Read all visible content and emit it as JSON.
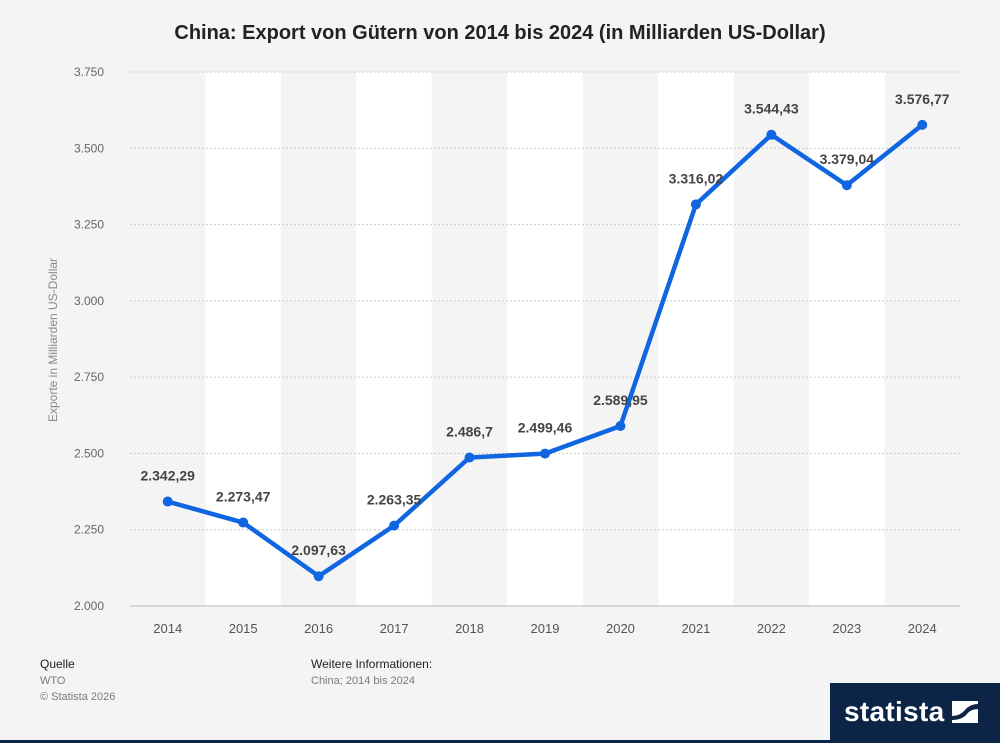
{
  "title": "China: Export von Gütern von 2014 bis 2024 (in Milliarden US-Dollar)",
  "chart_data": {
    "type": "line",
    "title": "China: Export von Gütern von 2014 bis 2024 (in Milliarden US-Dollar)",
    "ylabel": "Exporte in Milliarden US-Dollar",
    "xlabel": "",
    "categories": [
      "2014",
      "2015",
      "2016",
      "2017",
      "2018",
      "2019",
      "2020",
      "2021",
      "2022",
      "2023",
      "2024"
    ],
    "values": [
      2342.29,
      2273.47,
      2097.63,
      2263.35,
      2486.7,
      2499.46,
      2589.95,
      3316.02,
      3544.43,
      3379.04,
      3576.77
    ],
    "value_labels": [
      "2.342,29",
      "2.273,47",
      "2.097,63",
      "2.263,35",
      "2.486,7",
      "2.499,46",
      "2.589,95",
      "3.316,02",
      "3.544,43",
      "3.379,04",
      "3.576,77"
    ],
    "ylim": [
      2000,
      3750
    ],
    "yticks": [
      2000,
      2250,
      2500,
      2750,
      3000,
      3250,
      3500,
      3750
    ],
    "ytick_labels": [
      "2.000",
      "2.250",
      "2.500",
      "2.750",
      "3.000",
      "3.250",
      "3.500",
      "3.750"
    ],
    "grid": true,
    "line_color": "#0f66e0"
  },
  "footer": {
    "source_head": "Quelle",
    "source": "WTO",
    "copyright": "© Statista 2026",
    "info_head": "Weitere Informationen:",
    "info": "China; 2014 bis 2024"
  },
  "brand": "statista"
}
